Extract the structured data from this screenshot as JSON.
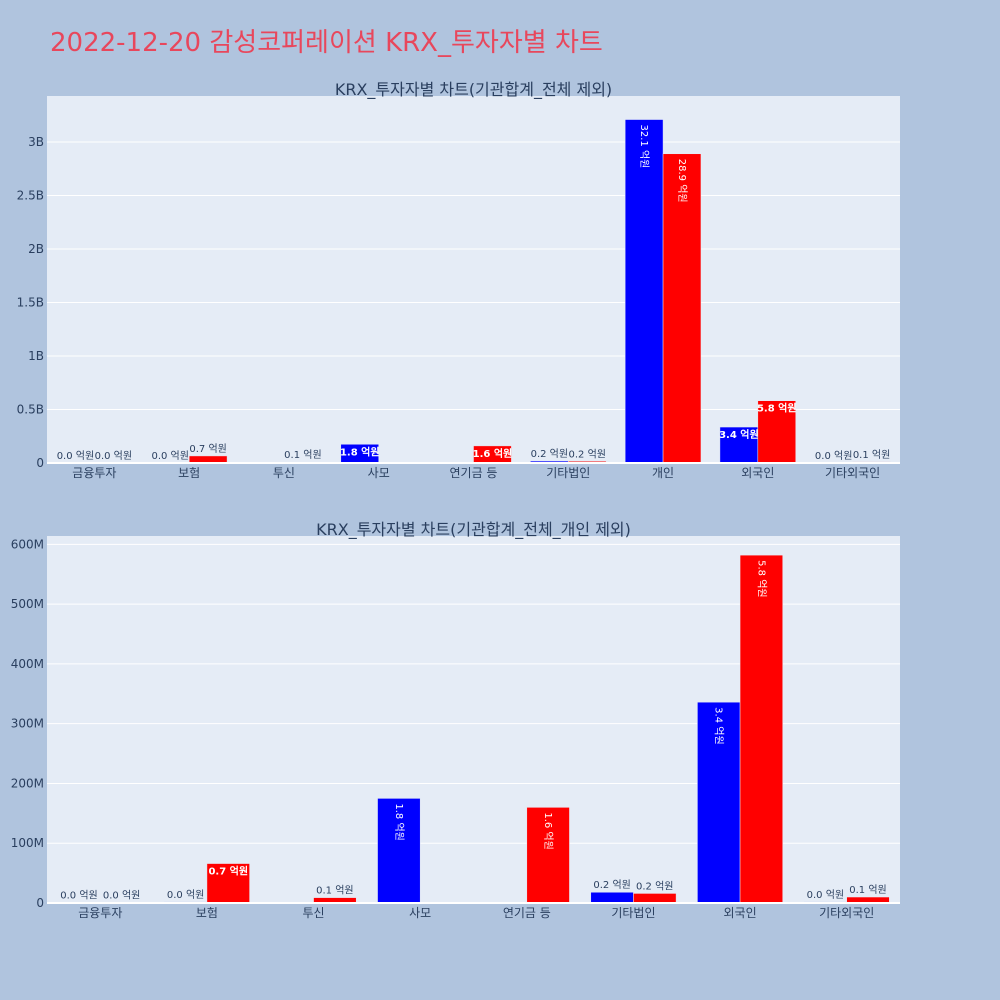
{
  "title": "2022-12-20 감성코퍼레이션 KRX_투자자별 차트",
  "colors": {
    "buy": "#0000ff",
    "sell": "#ff0000",
    "plot_bg": "#e5ecf6",
    "page_bg": "#b0c4de",
    "title": "#e8475c"
  },
  "chart_data": [
    {
      "type": "bar",
      "title": "KRX_투자자별 차트(기관합계_전체 제외)",
      "categories": [
        "금융투자",
        "보험",
        "투신",
        "사모",
        "연기금 등",
        "기타법인",
        "개인",
        "외국인",
        "기타외국인"
      ],
      "series": [
        {
          "color": "#0000ff",
          "values": [
            1000000,
            2000000,
            0,
            175000000,
            0,
            18000000,
            3210000000,
            336000000,
            2000000
          ],
          "labels": [
            "0.0 억원",
            "0.0 억원",
            "",
            "1.8 억원",
            "",
            "0.2 억원",
            "32.1 억원",
            "3.4 억원",
            "0.0 억원"
          ]
        },
        {
          "color": "#ff0000",
          "values": [
            1000000,
            66000000,
            9000000,
            0,
            160000000,
            16000000,
            2890000000,
            582000000,
            10000000
          ],
          "labels": [
            "0.0 억원",
            "0.7 억원",
            "0.1 억원",
            "",
            "1.6 억원",
            "0.2 억원",
            "28.9 억원",
            "5.8 억원",
            "0.1 억원"
          ]
        }
      ],
      "ylim": [
        0,
        3430000000
      ],
      "yticks": [
        0,
        500000000,
        1000000000,
        1500000000,
        2000000000,
        2500000000,
        3000000000
      ],
      "yticklabels": [
        "0",
        "0.5B",
        "1B",
        "1.5B",
        "2B",
        "2.5B",
        "3B"
      ],
      "grid": true
    },
    {
      "type": "bar",
      "title": "KRX_투자자별 차트(기관합계_전체_개인 제외)",
      "categories": [
        "금융투자",
        "보험",
        "투신",
        "사모",
        "연기금 등",
        "기타법인",
        "외국인",
        "기타외국인"
      ],
      "series": [
        {
          "color": "#0000ff",
          "values": [
            1000000,
            2000000,
            0,
            175000000,
            0,
            18000000,
            336000000,
            2000000
          ],
          "labels": [
            "0.0 억원",
            "0.0 억원",
            "",
            "1.8 억원",
            "",
            "0.2 억원",
            "3.4 억원",
            "0.0 억원"
          ]
        },
        {
          "color": "#ff0000",
          "values": [
            1000000,
            66000000,
            9000000,
            0,
            160000000,
            16000000,
            582000000,
            10000000
          ],
          "labels": [
            "0.0 억원",
            "0.7 억원",
            "0.1 억원",
            "",
            "1.6 억원",
            "0.2 억원",
            "5.8 억원",
            "0.1 억원"
          ]
        }
      ],
      "ylim": [
        0,
        614000000
      ],
      "yticks": [
        0,
        100000000,
        200000000,
        300000000,
        400000000,
        500000000,
        600000000
      ],
      "yticklabels": [
        "0",
        "100M",
        "200M",
        "300M",
        "400M",
        "500M",
        "600M"
      ],
      "grid": true
    }
  ]
}
